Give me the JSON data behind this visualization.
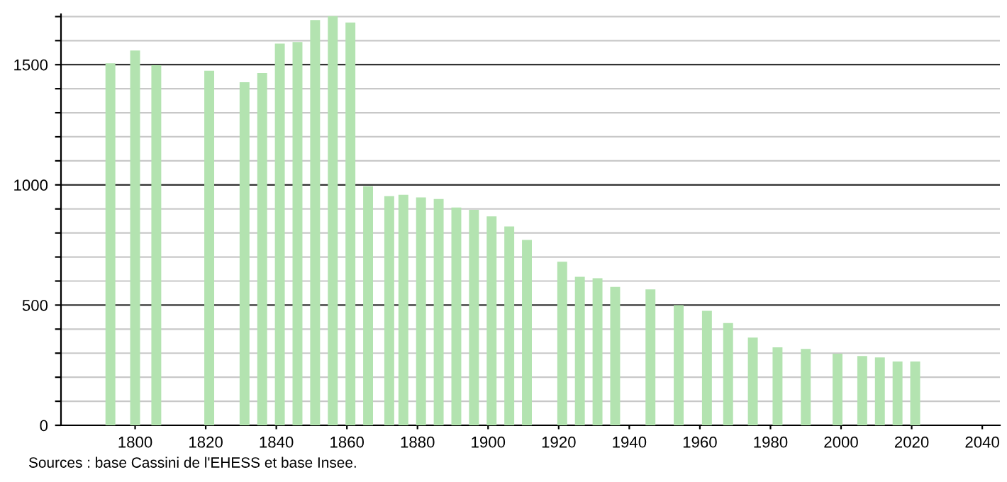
{
  "chart_data": {
    "type": "bar",
    "color": "#b3e3b0",
    "x": [
      1793,
      1800,
      1806,
      1821,
      1831,
      1836,
      1841,
      1846,
      1851,
      1856,
      1861,
      1866,
      1872,
      1876,
      1881,
      1886,
      1891,
      1896,
      1901,
      1906,
      1911,
      1921,
      1926,
      1931,
      1936,
      1946,
      1954,
      1962,
      1968,
      1975,
      1982,
      1990,
      1999,
      2006,
      2011,
      2016,
      2021
    ],
    "values": [
      1506,
      1559,
      1498,
      1475,
      1427,
      1465,
      1588,
      1594,
      1686,
      1702,
      1675,
      994,
      953,
      959,
      948,
      941,
      906,
      896,
      869,
      827,
      771,
      680,
      618,
      612,
      576,
      565,
      500,
      476,
      425,
      365,
      324,
      318,
      298,
      288,
      282,
      265,
      265
    ],
    "xlim": [
      1779,
      2045
    ],
    "xticks": [
      1800,
      1820,
      1840,
      1860,
      1880,
      1900,
      1920,
      1940,
      1960,
      1980,
      2000,
      2020,
      2040
    ],
    "ylim": [
      0,
      1710
    ],
    "yticks": [
      0,
      {
        "value": 100,
        "label": null
      },
      {
        "value": 200,
        "label": null
      },
      {
        "value": 300,
        "label": null
      },
      {
        "value": 400,
        "label": null
      },
      500,
      {
        "value": 600,
        "label": null
      },
      {
        "value": 700,
        "label": null
      },
      {
        "value": 800,
        "label": null
      },
      {
        "value": 900,
        "label": null
      },
      1000,
      {
        "value": 1100,
        "label": null
      },
      {
        "value": 1200,
        "label": null
      },
      {
        "value": 1300,
        "label": null
      },
      {
        "value": 1400,
        "label": null
      },
      1500,
      {
        "value": 1600,
        "label": null
      },
      {
        "value": 1700,
        "label": null
      }
    ],
    "grid": "y",
    "annotations": [
      "Sources : base Cassini de l'EHESS et base Insee."
    ]
  }
}
